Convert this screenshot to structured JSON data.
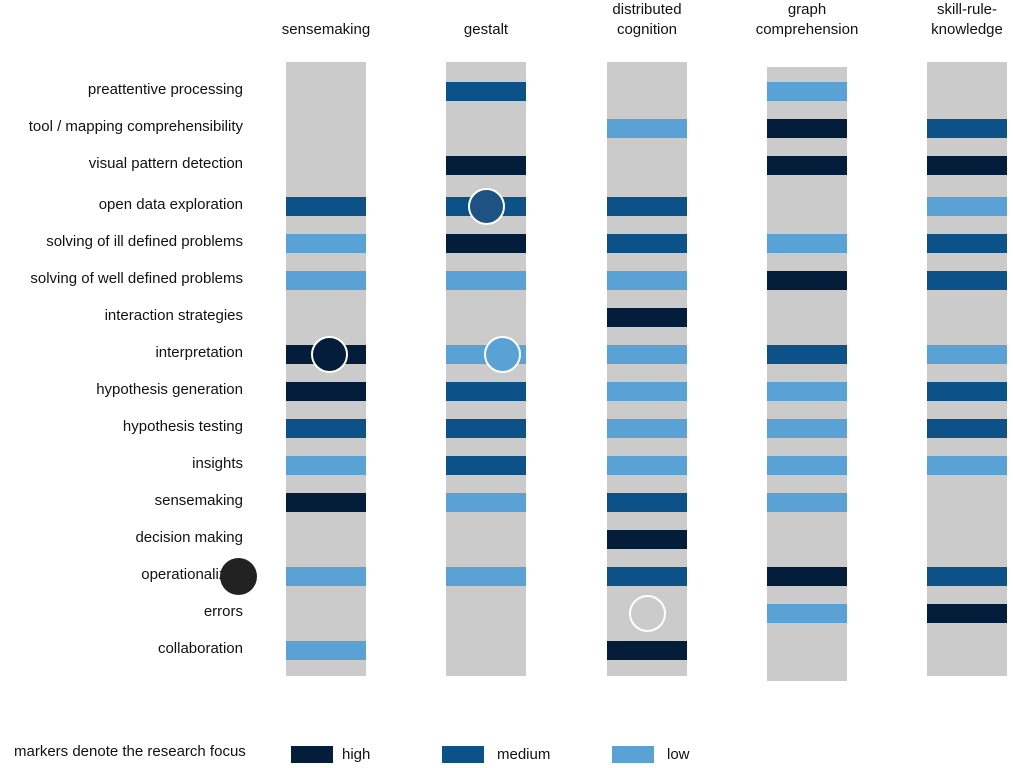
{
  "colors": {
    "high": "#031d3b",
    "medium": "#0c5288",
    "low": "#5aa2d5",
    "track": "#cbcbcb"
  },
  "columns": [
    {
      "title_lines": [
        "",
        "sensemaking"
      ]
    },
    {
      "title_lines": [
        "",
        "gestalt"
      ]
    },
    {
      "title_lines": [
        "distributed",
        "cognition"
      ]
    },
    {
      "title_lines": [
        "graph",
        "comprehension"
      ]
    },
    {
      "title_lines": [
        "skill-rule-",
        "knowledge"
      ]
    }
  ],
  "rows": [
    "preattentive processing",
    "tool / mapping comprehensibility",
    "visual pattern detection",
    "open data exploration",
    "solving of ill defined problems",
    "solving of well defined problems",
    "interaction strategies",
    "interpretation",
    "hypothesis generation",
    "hypothesis testing",
    "insights",
    "sensemaking",
    "decision making",
    "operationalizab",
    "errors",
    "collaboration"
  ],
  "matrix": [
    [
      "none",
      "medium",
      "none",
      "low",
      "none"
    ],
    [
      "none",
      "none",
      "low",
      "high",
      "medium"
    ],
    [
      "none",
      "high",
      "none",
      "high",
      "high"
    ],
    [
      "medium",
      "medium",
      "medium",
      "none",
      "low"
    ],
    [
      "low",
      "high",
      "medium",
      "low",
      "medium"
    ],
    [
      "low",
      "low",
      "low",
      "high",
      "medium"
    ],
    [
      "none",
      "none",
      "high",
      "none",
      "none"
    ],
    [
      "high",
      "low",
      "low",
      "medium",
      "low"
    ],
    [
      "high",
      "medium",
      "low",
      "low",
      "medium"
    ],
    [
      "medium",
      "medium",
      "low",
      "low",
      "medium"
    ],
    [
      "low",
      "medium",
      "low",
      "low",
      "low"
    ],
    [
      "high",
      "low",
      "medium",
      "low",
      "none"
    ],
    [
      "none",
      "none",
      "high",
      "none",
      "none"
    ],
    [
      "low",
      "low",
      "medium",
      "high",
      "medium"
    ],
    [
      "none",
      "none",
      "none",
      "low",
      "high"
    ],
    [
      "low",
      "none",
      "high",
      "none",
      "none"
    ]
  ],
  "markers": [
    {
      "row": 3,
      "col": 1,
      "fill": "#1e5282"
    },
    {
      "row": 7,
      "col": 0,
      "fill": "#031d3b"
    },
    {
      "row": 7,
      "col": 1,
      "fill": "#5aa2d5"
    },
    {
      "row": 13,
      "col": 0,
      "fill": "#222222",
      "on_label": true
    },
    {
      "row": 14,
      "col": 2,
      "fill": "transparent"
    }
  ],
  "legend": {
    "caption": "markers  denote the research focus",
    "high": "high",
    "medium": "medium",
    "low": "low"
  }
}
